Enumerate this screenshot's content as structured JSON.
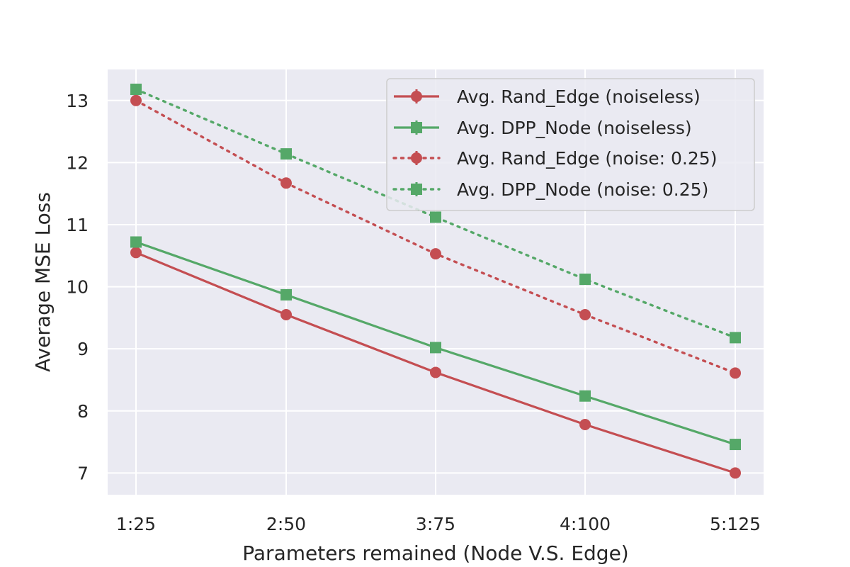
{
  "chart_data": {
    "type": "line",
    "title": "",
    "xlabel": "Parameters remained (Node V.S. Edge)",
    "ylabel": "Average MSE Loss",
    "categories": [
      "1:25",
      "2:50",
      "3:75",
      "4:100",
      "5:125"
    ],
    "ylim": [
      6.65,
      13.5
    ],
    "yticks": [
      7,
      8,
      9,
      10,
      11,
      12,
      13
    ],
    "grid": true,
    "legend_position": "top-right",
    "series": [
      {
        "name": "Avg. Rand_Edge (noiseless)",
        "values": [
          10.55,
          9.55,
          8.62,
          7.78,
          7.0
        ],
        "color": "#c44e52",
        "marker": "circle",
        "linestyle": "solid"
      },
      {
        "name": "Avg. DPP_Node (noiseless)",
        "values": [
          10.72,
          9.87,
          9.02,
          8.24,
          7.46
        ],
        "color": "#55a868",
        "marker": "square",
        "linestyle": "solid"
      },
      {
        "name": "Avg. Rand_Edge (noise: 0.25)",
        "values": [
          13.0,
          11.67,
          10.53,
          9.55,
          8.61
        ],
        "color": "#c44e52",
        "marker": "circle",
        "linestyle": "dotted"
      },
      {
        "name": "Avg. DPP_Node (noise: 0.25)",
        "values": [
          13.18,
          12.14,
          11.12,
          10.12,
          9.18
        ],
        "color": "#55a868",
        "marker": "square",
        "linestyle": "dotted"
      }
    ]
  },
  "colors": {
    "plot_background": "#eaeaf2",
    "grid": "#ffffff"
  }
}
